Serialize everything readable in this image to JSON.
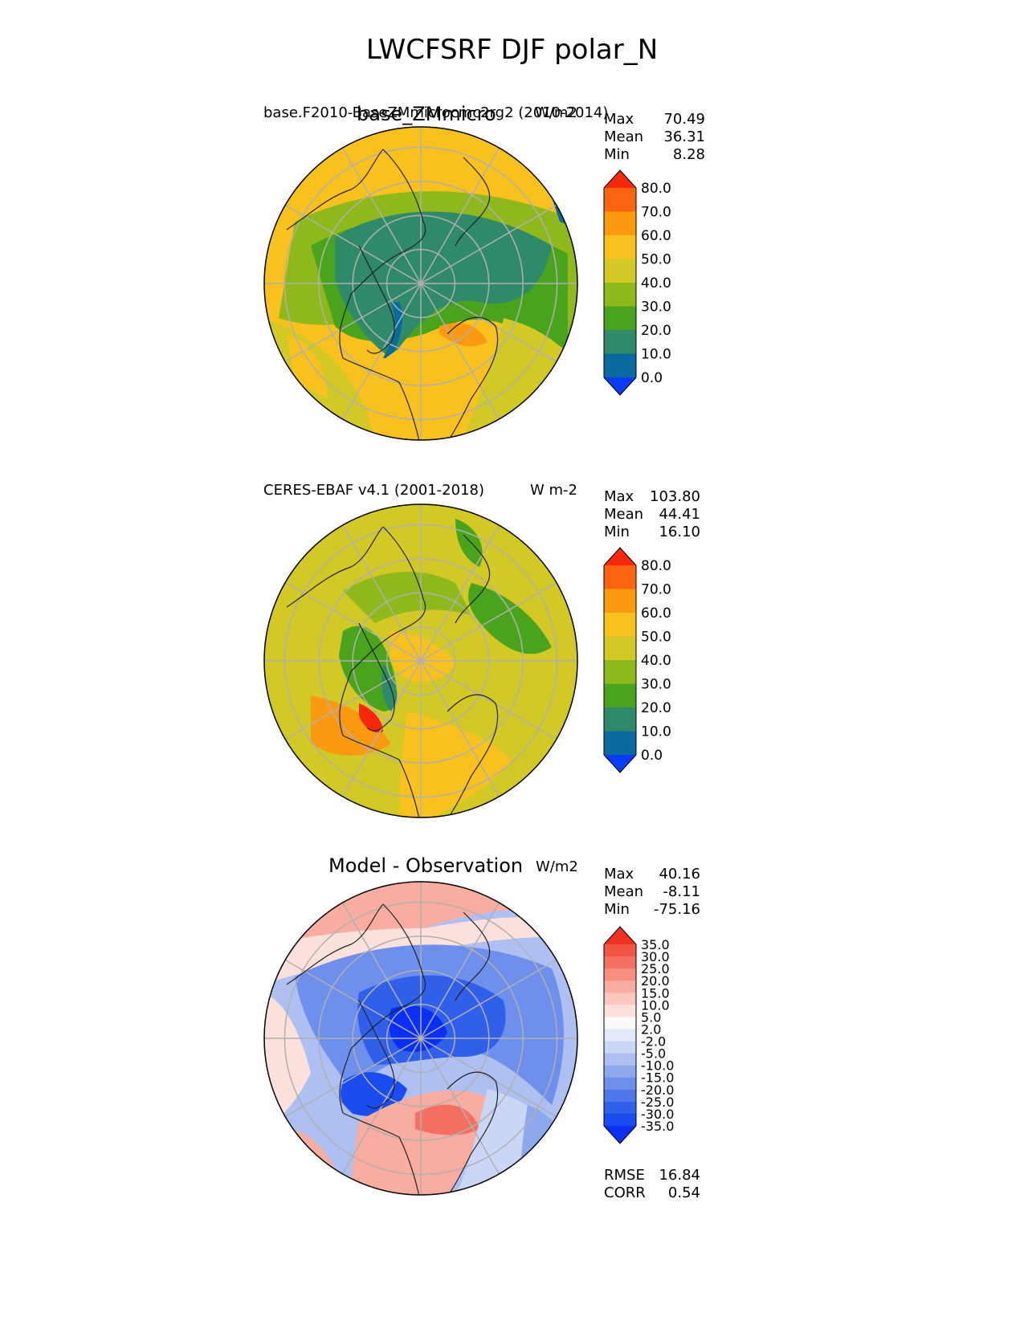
{
  "figure": {
    "title": "LWCFSRF DJF polar_N"
  },
  "panels": [
    {
      "title": "base_ZMmicro",
      "left_title": "base.F2010-BaseZMmicrocmc2rg2 (2010-2014)",
      "units": "W/m2",
      "stats": [
        {
          "label": "Max",
          "value": "70.49"
        },
        {
          "label": "Mean",
          "value": "36.31"
        },
        {
          "label": "Min",
          "value": "8.28"
        }
      ]
    },
    {
      "title": "",
      "left_title": "CERES-EBAF v4.1 (2001-2018)",
      "units": "W m-2",
      "stats": [
        {
          "label": "Max",
          "value": "103.80"
        },
        {
          "label": "Mean",
          "value": "44.41"
        },
        {
          "label": "Min",
          "value": "16.10"
        }
      ]
    },
    {
      "title": "Model - Observation",
      "left_title": "",
      "units": "W/m2",
      "stats": [
        {
          "label": "Max",
          "value": "40.16"
        },
        {
          "label": "Mean",
          "value": "-8.11"
        },
        {
          "label": "Min",
          "value": "-75.16"
        }
      ],
      "metrics": [
        {
          "label": "RMSE",
          "value": "16.84"
        },
        {
          "label": "CORR",
          "value": "0.54"
        }
      ]
    }
  ],
  "chart_data": [
    {
      "type": "heatmap",
      "projection": "north-polar-stereographic",
      "title": "base_ZMmicro",
      "units": "W/m2",
      "stats": {
        "max": 70.49,
        "mean": 36.31,
        "min": 8.28
      },
      "colorbar": {
        "extend": "both",
        "ticks": [
          0,
          10,
          20,
          30,
          40,
          50,
          60,
          70,
          80
        ],
        "tick_labels": [
          "0.0",
          "10.0",
          "20.0",
          "30.0",
          "40.0",
          "50.0",
          "60.0",
          "70.0",
          "80.0"
        ],
        "colors": [
          "#0a3cf5",
          "#0a6aa0",
          "#2e8a68",
          "#4aa31c",
          "#8eb81c",
          "#d2c826",
          "#f9c11e",
          "#fb9a10",
          "#fc6510",
          "#f8280c"
        ]
      }
    },
    {
      "type": "heatmap",
      "projection": "north-polar-stereographic",
      "title": "CERES-EBAF v4.1 (2001-2018)",
      "units": "W m-2",
      "stats": {
        "max": 103.8,
        "mean": 44.41,
        "min": 16.1
      },
      "colorbar": {
        "extend": "both",
        "ticks": [
          0,
          10,
          20,
          30,
          40,
          50,
          60,
          70,
          80
        ],
        "tick_labels": [
          "0.0",
          "10.0",
          "20.0",
          "30.0",
          "40.0",
          "50.0",
          "60.0",
          "70.0",
          "80.0"
        ],
        "colors": [
          "#0a3cf5",
          "#0a6aa0",
          "#2e8a68",
          "#4aa31c",
          "#8eb81c",
          "#d2c826",
          "#f9c11e",
          "#fb9a10",
          "#fc6510",
          "#f8280c"
        ]
      }
    },
    {
      "type": "heatmap",
      "projection": "north-polar-stereographic",
      "title": "Model - Observation",
      "units": "W/m2",
      "stats": {
        "max": 40.16,
        "mean": -8.11,
        "min": -75.16,
        "rmse": 16.84,
        "corr": 0.54
      },
      "colorbar": {
        "extend": "both",
        "ticks": [
          -35,
          -30,
          -25,
          -20,
          -15,
          -10,
          -5,
          -2,
          2,
          5,
          10,
          15,
          20,
          25,
          30,
          35
        ],
        "tick_labels": [
          "-35.0",
          "-30.0",
          "-25.0",
          "-20.0",
          "-15.0",
          "-10.0",
          "-5.0",
          "-2.0",
          "2.0",
          "5.0",
          "10.0",
          "15.0",
          "20.0",
          "25.0",
          "30.0",
          "35.0"
        ],
        "colors": [
          "#0a30f5",
          "#1a4cf0",
          "#3060ea",
          "#4e78ea",
          "#6e90ec",
          "#8ea8ee",
          "#aec0f2",
          "#cad6f6",
          "#e4eaf8",
          "#fafafa",
          "#fbe0dc",
          "#fbc8c0",
          "#f9aca0",
          "#f78e80",
          "#f47060",
          "#f25444",
          "#f03020"
        ]
      }
    }
  ]
}
